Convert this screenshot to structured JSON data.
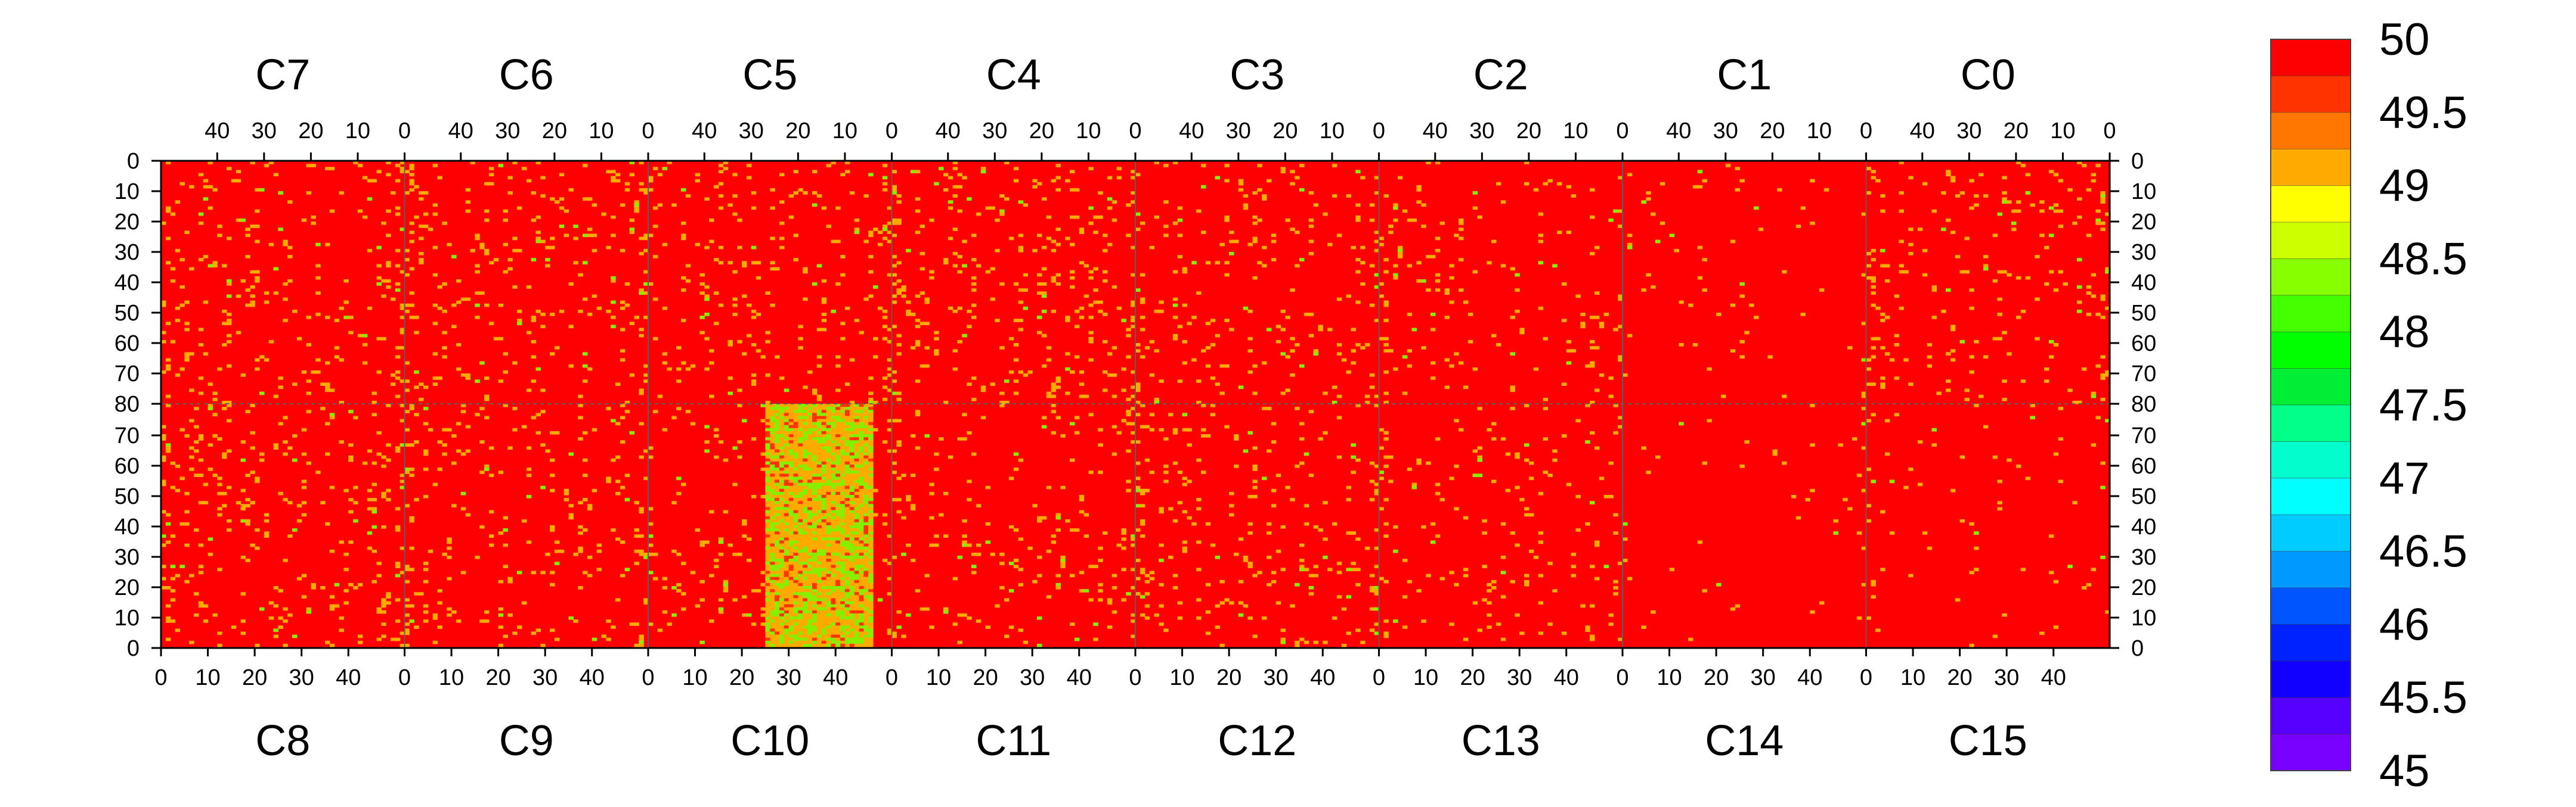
{
  "chart_data": {
    "type": "heatmap",
    "title": "",
    "top_chips": [
      "C7",
      "C6",
      "C5",
      "C4",
      "C3",
      "C2",
      "C1",
      "C0"
    ],
    "bottom_chips": [
      "C8",
      "C9",
      "C10",
      "C11",
      "C12",
      "C13",
      "C14",
      "C15"
    ],
    "columns_per_chip": 52,
    "rows_per_half": 80,
    "top_x_tick_labels": [
      "40",
      "30",
      "20",
      "10",
      "0"
    ],
    "bottom_x_tick_labels": [
      "0",
      "10",
      "20",
      "30",
      "40"
    ],
    "top_y_tick_labels": [
      "0",
      "10",
      "20",
      "30",
      "40",
      "50",
      "60",
      "70",
      "80"
    ],
    "bottom_y_tick_labels": [
      "70",
      "60",
      "50",
      "40",
      "30",
      "20",
      "10",
      "0"
    ],
    "z_range": [
      45,
      50
    ],
    "colorbar": {
      "tick_labels": [
        "50",
        "49.5",
        "49",
        "48.5",
        "48",
        "47.5",
        "47",
        "46.5",
        "46",
        "45.5",
        "45"
      ],
      "colors": [
        "#ff0000",
        "#ff3300",
        "#ff7700",
        "#ffaa00",
        "#ffff00",
        "#ccff00",
        "#88ff00",
        "#44ff00",
        "#00ff00",
        "#00ee33",
        "#00ff88",
        "#00ffcc",
        "#00ffff",
        "#00ccff",
        "#0099ff",
        "#0055ff",
        "#0022ff",
        "#1100ff",
        "#5500ff",
        "#7700ff"
      ]
    },
    "background_value": 50,
    "lower_values_region": {
      "chip": "C10",
      "columns": [
        25,
        47
      ],
      "value_range": [
        48,
        49
      ]
    },
    "colors": {
      "background": "#ff0000",
      "hot_pixel_orange": "#ffaa00",
      "hot_pixel_green": "#88ee00",
      "grid": "#606060"
    }
  }
}
